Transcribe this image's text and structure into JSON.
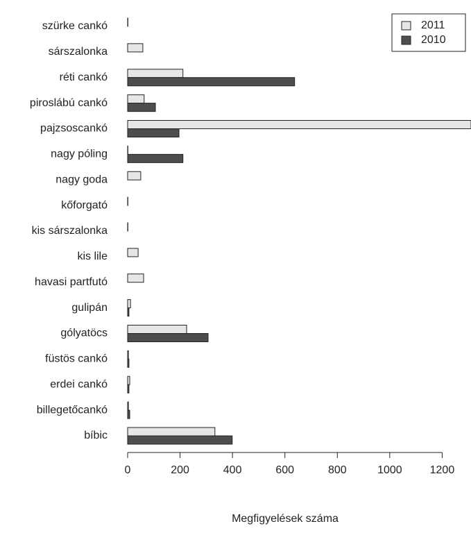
{
  "chart_data": {
    "type": "barh",
    "xlabel": "Megfigyelések száma",
    "categories": [
      "szürke cankó",
      "sárszalonka",
      "réti cankó",
      "piroslábú cankó",
      "pajzsoscankó",
      "nagy póling",
      "nagy goda",
      "kőforgató",
      "kis sárszalonka",
      "kis lile",
      "havasi partfutó",
      "gulipán",
      "gólyatöcs",
      "füstös cankó",
      "erdei cankó",
      "billegetőcankó",
      "bíbic"
    ],
    "series": [
      {
        "name": "2011",
        "color": "#e6e6e6",
        "values": [
          1,
          58,
          211,
          63,
          1310,
          1,
          50,
          1,
          1,
          40,
          61,
          11,
          225,
          3,
          8,
          3,
          333
        ]
      },
      {
        "name": "2010",
        "color": "#4d4d4d",
        "values": [
          0,
          0,
          637,
          106,
          196,
          211,
          0,
          0,
          0,
          0,
          0,
          5,
          307,
          5,
          5,
          8,
          399
        ]
      }
    ],
    "xlim": [
      0,
      1310
    ],
    "xticks": [
      0,
      200,
      400,
      600,
      800,
      1000,
      1200
    ],
    "legend": "top-right"
  }
}
